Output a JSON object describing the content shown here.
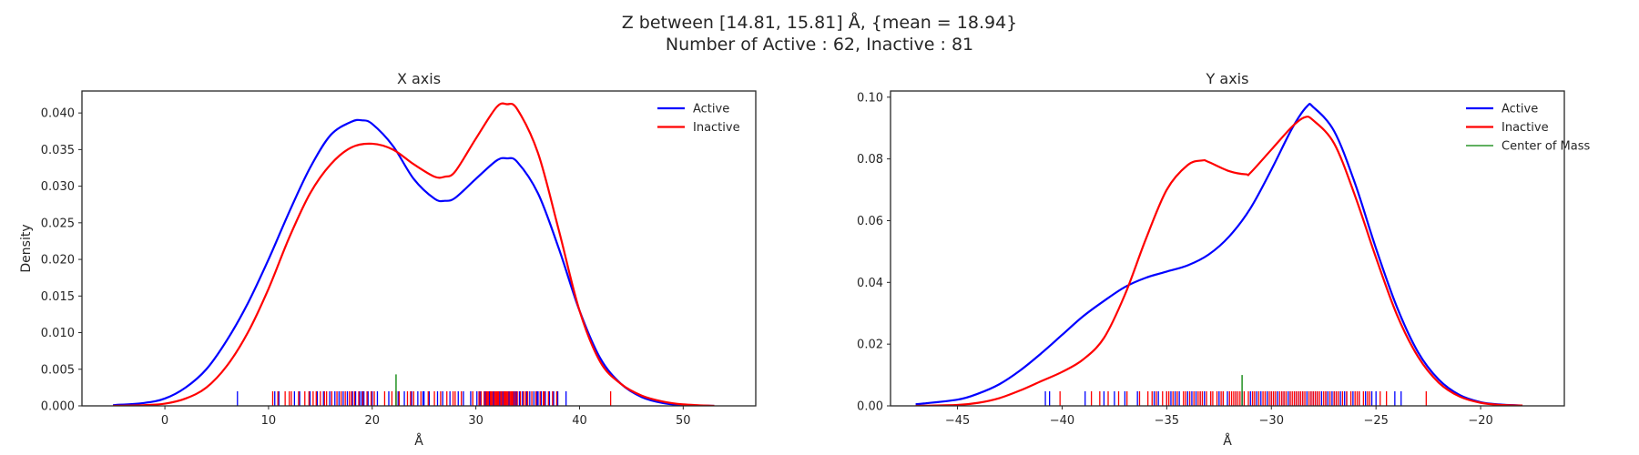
{
  "figure": {
    "title_line1": "Z between [14.81, 15.81] Å, {mean = 18.94}",
    "title_line2": "Number of Active : 62, Inactive : 81"
  },
  "chart_data": [
    {
      "type": "line",
      "subtype": "kde-with-rug",
      "title": "X axis",
      "xlabel": "Å",
      "ylabel": "Density",
      "xlim": [
        -8,
        57
      ],
      "ylim": [
        0,
        0.043
      ],
      "xticks": [
        0,
        10,
        20,
        30,
        40,
        50
      ],
      "yticks": [
        0.0,
        0.005,
        0.01,
        0.015,
        0.02,
        0.025,
        0.03,
        0.035,
        0.04
      ],
      "ytick_labels": [
        "0.000",
        "0.005",
        "0.010",
        "0.015",
        "0.020",
        "0.025",
        "0.030",
        "0.035",
        "0.040"
      ],
      "grid": false,
      "legend_position": "top-right",
      "series": [
        {
          "name": "Active",
          "color": "#0000ff",
          "x": [
            -5,
            -2,
            0,
            2,
            4,
            6,
            8,
            10,
            12,
            14,
            16,
            18,
            19,
            20,
            22,
            24,
            26,
            27,
            28,
            30,
            32,
            33,
            34,
            36,
            38,
            40,
            42,
            44,
            46,
            48,
            50,
            53
          ],
          "y": [
            0.0001,
            0.0004,
            0.001,
            0.0025,
            0.005,
            0.009,
            0.014,
            0.02,
            0.0265,
            0.0325,
            0.037,
            0.0388,
            0.039,
            0.0385,
            0.0355,
            0.031,
            0.0283,
            0.028,
            0.0284,
            0.031,
            0.0335,
            0.0338,
            0.0333,
            0.029,
            0.0215,
            0.013,
            0.0065,
            0.003,
            0.0012,
            0.0004,
            0.0001,
            0.0
          ]
        },
        {
          "name": "Inactive",
          "color": "#ff0000",
          "x": [
            -5,
            -2,
            0,
            2,
            4,
            6,
            8,
            10,
            12,
            14,
            16,
            18,
            20,
            22,
            24,
            26,
            27,
            28,
            30,
            32,
            33,
            34,
            36,
            38,
            40,
            42,
            44,
            46,
            48,
            50,
            53
          ],
          "y": [
            0.0,
            0.0001,
            0.0003,
            0.001,
            0.0025,
            0.0055,
            0.01,
            0.016,
            0.023,
            0.029,
            0.033,
            0.0353,
            0.0358,
            0.035,
            0.033,
            0.0313,
            0.0313,
            0.032,
            0.0365,
            0.0408,
            0.0412,
            0.0405,
            0.0345,
            0.024,
            0.013,
            0.006,
            0.003,
            0.0014,
            0.0006,
            0.0002,
            0.0
          ]
        },
        {
          "name": "Center of Mass",
          "color": "#008000",
          "x": [
            22.3
          ],
          "y": [
            0.0043
          ]
        }
      ],
      "rug": [
        {
          "series": "Active",
          "values": [
            7.0,
            10.6,
            11.0,
            12.5,
            13.0,
            14.0,
            14.7,
            15.3,
            15.9,
            16.4,
            16.8,
            17.2,
            17.6,
            18.1,
            18.4,
            18.8,
            19.2,
            19.6,
            20.0,
            20.5,
            21.6,
            22.5,
            23.1,
            23.8,
            24.4,
            25.0,
            25.5,
            26.3,
            26.8,
            27.5,
            28.3,
            28.8,
            30.4,
            30.9,
            31.3,
            31.7,
            32.0,
            32.3,
            32.6,
            32.9,
            33.2,
            33.5,
            33.9,
            34.2,
            34.5,
            34.9,
            35.2,
            35.6,
            35.9,
            36.3,
            36.7,
            37.1,
            37.5,
            37.9,
            38.7,
            16.1,
            19.0,
            24.9,
            29.5,
            33.7,
            36.0,
            30.1
          ]
        },
        {
          "series": "Inactive",
          "values": [
            10.4,
            10.9,
            11.6,
            12.0,
            12.9,
            13.5,
            13.9,
            14.3,
            14.6,
            15.0,
            15.6,
            16.1,
            16.6,
            17.0,
            17.4,
            17.8,
            18.3,
            18.7,
            19.1,
            19.5,
            19.9,
            21.9,
            22.3,
            22.6,
            23.4,
            24.0,
            24.7,
            25.4,
            26.0,
            26.6,
            27.2,
            28.0,
            28.6,
            30.5,
            30.8,
            31.0,
            31.2,
            31.4,
            31.6,
            31.8,
            31.9,
            32.1,
            32.2,
            32.4,
            32.5,
            32.7,
            32.8,
            33.0,
            33.1,
            33.3,
            33.4,
            33.6,
            33.8,
            34.0,
            34.3,
            34.6,
            35.0,
            35.4,
            35.8,
            36.2,
            36.6,
            37.0,
            37.4,
            37.8,
            43.0,
            15.4,
            18.0,
            20.2,
            23.7,
            27.8,
            29.7,
            30.3,
            31.1,
            31.5,
            32.0,
            32.9,
            33.5,
            34.8,
            36.5,
            12.2,
            21.2
          ]
        }
      ]
    },
    {
      "type": "line",
      "subtype": "kde-with-rug",
      "title": "Y axis",
      "xlabel": "Å",
      "ylabel": "",
      "xlim": [
        -48.2,
        -16.0
      ],
      "ylim": [
        0,
        0.102
      ],
      "xticks": [
        -45,
        -40,
        -35,
        -30,
        -25,
        -20
      ],
      "yticks": [
        0.0,
        0.02,
        0.04,
        0.06,
        0.08,
        0.1
      ],
      "ytick_labels": [
        "0.00",
        "0.02",
        "0.04",
        "0.06",
        "0.08",
        "0.10"
      ],
      "grid": false,
      "legend_position": "top-right",
      "series": [
        {
          "name": "Active",
          "color": "#0000ff",
          "x": [
            -47,
            -45,
            -44,
            -43,
            -42,
            -41,
            -40,
            -39,
            -38,
            -37,
            -36,
            -35,
            -34,
            -33,
            -32,
            -31,
            -30,
            -29,
            -28.3,
            -28,
            -27,
            -26,
            -25,
            -24,
            -23,
            -22,
            -21,
            -20,
            -19,
            -18
          ],
          "y": [
            0.0005,
            0.002,
            0.004,
            0.007,
            0.0115,
            0.017,
            0.023,
            0.029,
            0.034,
            0.0385,
            0.0415,
            0.0435,
            0.0455,
            0.049,
            0.055,
            0.064,
            0.0765,
            0.09,
            0.097,
            0.0968,
            0.089,
            0.072,
            0.051,
            0.032,
            0.0175,
            0.0085,
            0.0035,
            0.0012,
            0.0004,
            0.0001
          ]
        },
        {
          "name": "Inactive",
          "color": "#ff0000",
          "x": [
            -47,
            -45,
            -44,
            -43,
            -42,
            -41,
            -40,
            -39,
            -38,
            -37,
            -36,
            -35,
            -34,
            -33.3,
            -33,
            -32,
            -31.2,
            -31,
            -30,
            -29,
            -28.4,
            -28,
            -27,
            -26,
            -25,
            -24,
            -23,
            -22,
            -21,
            -20,
            -19,
            -18
          ],
          "y": [
            0.0,
            0.0003,
            0.001,
            0.0025,
            0.005,
            0.008,
            0.011,
            0.015,
            0.022,
            0.036,
            0.054,
            0.07,
            0.078,
            0.0795,
            0.079,
            0.076,
            0.075,
            0.0755,
            0.083,
            0.0905,
            0.0935,
            0.0925,
            0.085,
            0.068,
            0.048,
            0.0295,
            0.016,
            0.0075,
            0.003,
            0.001,
            0.0003,
            0.0001
          ]
        },
        {
          "name": "Center of Mass",
          "color": "#008000",
          "x": [
            -31.4
          ],
          "y": [
            0.01
          ]
        }
      ],
      "rug": [
        {
          "series": "Active",
          "values": [
            -40.8,
            -40.6,
            -38.9,
            -38.0,
            -37.5,
            -37.0,
            -36.4,
            -35.6,
            -35.4,
            -35.0,
            -34.6,
            -34.4,
            -34.0,
            -33.6,
            -33.4,
            -32.9,
            -32.5,
            -32.1,
            -31.7,
            -31.4,
            -30.7,
            -30.5,
            -30.2,
            -29.9,
            -29.7,
            -29.4,
            -29.1,
            -28.9,
            -28.7,
            -28.5,
            -28.3,
            -28.1,
            -27.9,
            -27.6,
            -27.3,
            -27.0,
            -26.7,
            -26.4,
            -26.1,
            -25.8,
            -25.2,
            -25.0,
            -24.1,
            -23.8,
            -33.2,
            -29.5,
            -28.6,
            -27.4,
            -26.9,
            -32.3,
            -34.8,
            -30.0,
            -28.0,
            -26.5,
            -29.2,
            -27.8,
            -33.8,
            -31.0,
            -28.8,
            -27.1,
            -25.5,
            -30.9
          ],
          "emphasis": "tall"
        },
        {
          "series": "Inactive",
          "values": [
            -40.1,
            -38.6,
            -38.2,
            -37.8,
            -37.3,
            -35.7,
            -35.5,
            -35.2,
            -34.9,
            -34.7,
            -34.2,
            -33.9,
            -33.5,
            -33.1,
            -32.8,
            -32.6,
            -32.3,
            -32.0,
            -31.8,
            -31.5,
            -31.3,
            -30.9,
            -30.6,
            -30.3,
            -30.0,
            -29.8,
            -29.5,
            -29.3,
            -29.0,
            -28.8,
            -28.6,
            -28.4,
            -28.2,
            -28.0,
            -27.8,
            -27.5,
            -27.2,
            -26.9,
            -26.6,
            -26.2,
            -25.9,
            -25.6,
            -25.3,
            -24.8,
            -22.6,
            -36.9,
            -34.5,
            -33.3,
            -31.9,
            -30.8,
            -29.6,
            -28.9,
            -27.7,
            -26.4,
            -25.8,
            -35.9,
            -33.7,
            -32.4,
            -31.1,
            -29.9,
            -28.5,
            -27.0,
            -24.5,
            -34.1,
            -31.6,
            -29.1,
            -26.8,
            -28.1,
            -30.4,
            -32.9,
            -35.0,
            -27.4,
            -26.0,
            -29.4,
            -31.7,
            -33.4,
            -28.7,
            -27.9,
            -30.1,
            -25.4,
            -36.3
          ]
        }
      ]
    }
  ]
}
